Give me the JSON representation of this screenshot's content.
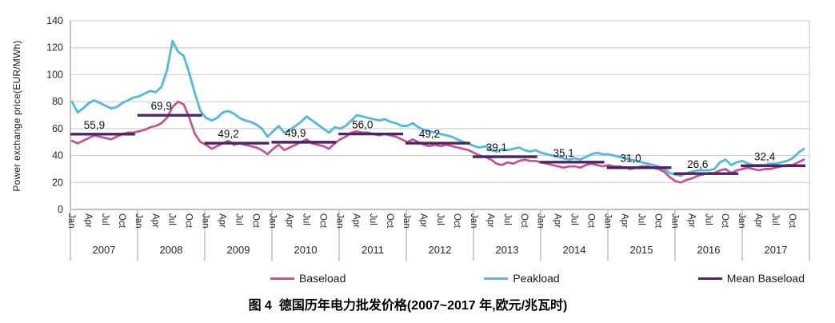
{
  "figure": {
    "caption": "图 4  德国历年电力批发价格(2007~2017 年,欧元/兆瓦时)"
  },
  "chart_data": {
    "type": "line",
    "title": "",
    "xlabel": "",
    "ylabel": "Power exchange price(EUR/MWh)",
    "ylim": [
      0,
      140
    ],
    "yticks": [
      0,
      20,
      40,
      60,
      80,
      100,
      120,
      140
    ],
    "grid": "horizontal",
    "legend_position": "bottom",
    "x_years": [
      "2007",
      "2008",
      "2009",
      "2010",
      "2011",
      "2012",
      "2013",
      "2014",
      "2015",
      "2016",
      "2017"
    ],
    "x_month_ticks": [
      "Jan",
      "Apr",
      "Jul",
      "Oct"
    ],
    "series": [
      {
        "name": "Baseload",
        "color": "#c1548e",
        "kind": "monthly-line",
        "monthly_values": [
          51,
          49,
          51,
          53,
          55,
          54,
          53,
          52,
          54,
          56,
          57,
          57,
          58,
          59,
          61,
          62,
          64,
          68,
          76,
          80,
          78,
          68,
          56,
          50,
          48,
          45,
          47,
          49,
          51,
          48,
          49,
          48,
          47,
          46,
          44,
          41,
          45,
          48,
          44,
          46,
          48,
          50,
          52,
          49,
          48,
          47,
          45,
          49,
          52,
          54,
          57,
          58,
          57,
          57,
          56,
          55,
          56,
          55,
          54,
          52,
          50,
          52,
          50,
          48,
          47,
          48,
          47,
          48,
          47,
          46,
          45,
          44,
          42,
          40,
          39,
          37,
          34,
          33,
          35,
          34,
          36,
          37,
          36,
          36,
          35,
          34,
          33,
          32,
          31,
          32,
          32,
          31,
          33,
          34,
          33,
          32,
          33,
          32,
          32,
          31,
          30,
          31,
          32,
          32,
          31,
          30,
          28,
          24,
          21,
          20,
          22,
          23,
          25,
          26,
          27,
          27,
          29,
          30,
          27,
          29,
          30,
          31,
          30,
          29,
          30,
          30,
          31,
          32,
          33,
          33,
          35,
          37
        ]
      },
      {
        "name": "Peakload",
        "color": "#58b8de",
        "kind": "monthly-line",
        "monthly_values": [
          80,
          72,
          75,
          79,
          81,
          79,
          77,
          75,
          76,
          79,
          81,
          83,
          84,
          86,
          88,
          87,
          91,
          103,
          125,
          117,
          114,
          101,
          86,
          73,
          68,
          66,
          68,
          72,
          73,
          71,
          68,
          66,
          65,
          63,
          60,
          54,
          58,
          62,
          57,
          59,
          62,
          65,
          69,
          66,
          63,
          60,
          57,
          61,
          60,
          62,
          66,
          70,
          69,
          68,
          67,
          66,
          67,
          65,
          64,
          62,
          62,
          64,
          61,
          59,
          58,
          57,
          56,
          55,
          54,
          52,
          50,
          49,
          47,
          46,
          47,
          44,
          43,
          45,
          44,
          45,
          46,
          44,
          43,
          44,
          42,
          41,
          40,
          39,
          38,
          37,
          38,
          37,
          39,
          41,
          42,
          41,
          41,
          40,
          39,
          38,
          37,
          36,
          35,
          34,
          33,
          32,
          30,
          27,
          26,
          25,
          27,
          28,
          29,
          29,
          29,
          30,
          35,
          37,
          33,
          35,
          36,
          34,
          33,
          33,
          33,
          34,
          34,
          35,
          36,
          38,
          42,
          45
        ]
      },
      {
        "name": "Mean Baseload",
        "color": "#4b2566",
        "kind": "annual-mean-segments",
        "annual_values": [
          55.9,
          69.9,
          49.2,
          49.9,
          56.0,
          49.2,
          39.1,
          35.1,
          31.0,
          26.6,
          32.4
        ],
        "annual_labels": [
          "55,9",
          "69,9",
          "49,2",
          "49,9",
          "56,0",
          "49,2",
          "39,1",
          "35,1",
          "31,0",
          "26,6",
          "32,4"
        ]
      }
    ]
  }
}
